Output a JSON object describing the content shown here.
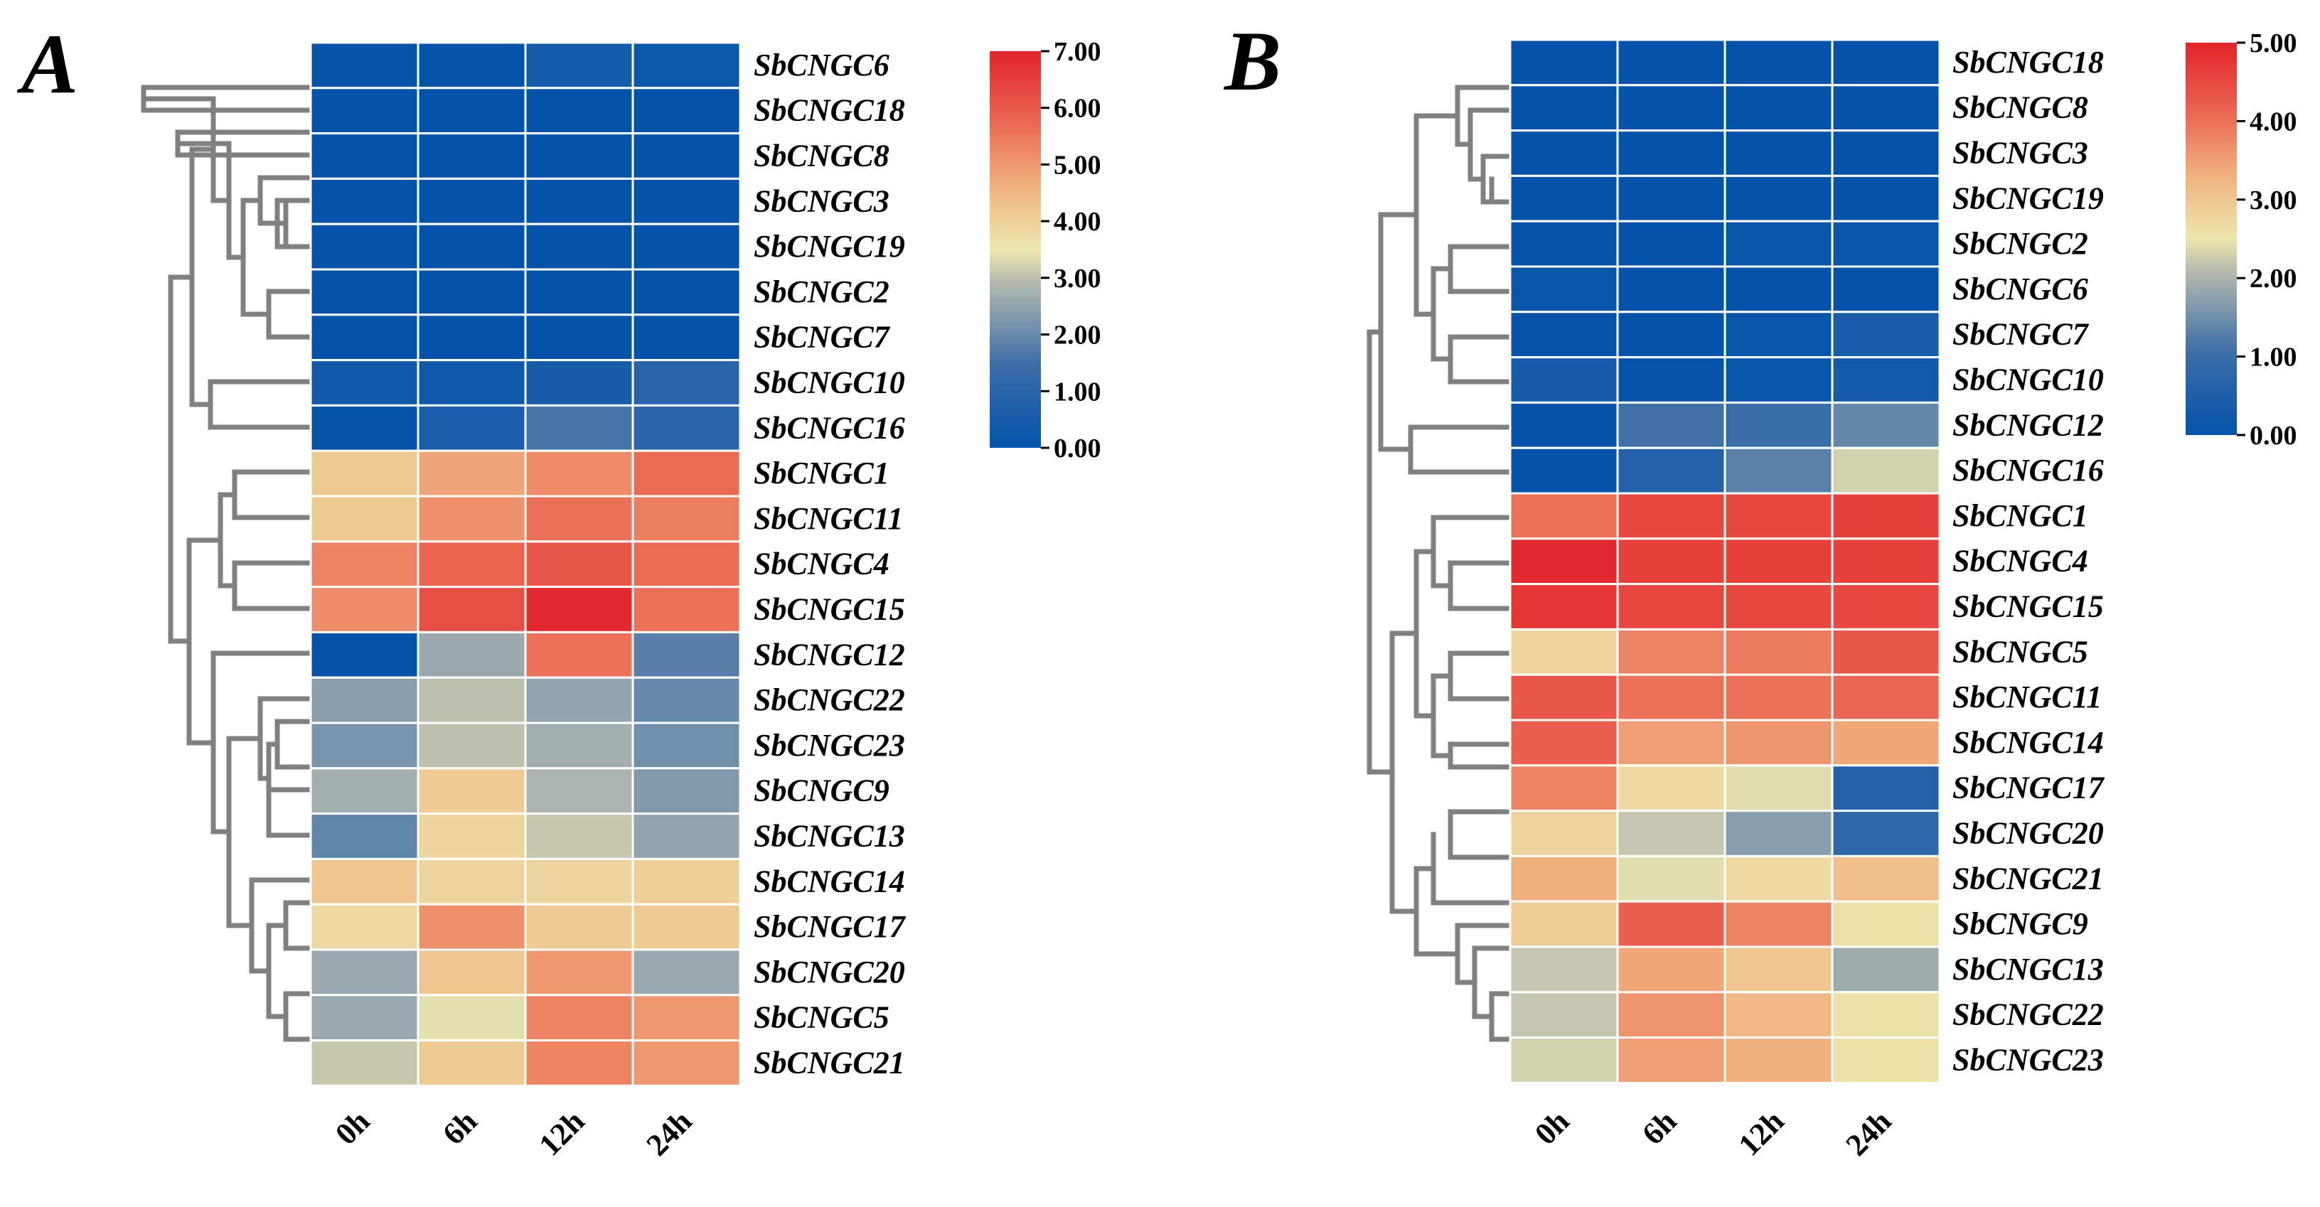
{
  "chart_data": [
    {
      "type": "heatmap",
      "panel_label": "A",
      "columns": [
        "0h",
        "6h",
        "12h",
        "24h"
      ],
      "rows": [
        {
          "gene": "SbCNGC6",
          "values": [
            0.05,
            0.05,
            0.45,
            0.2
          ]
        },
        {
          "gene": "SbCNGC18",
          "values": [
            0.0,
            0.0,
            0.0,
            0.0
          ]
        },
        {
          "gene": "SbCNGC8",
          "values": [
            0.0,
            0.0,
            0.0,
            0.0
          ]
        },
        {
          "gene": "SbCNGC3",
          "values": [
            0.0,
            0.0,
            0.0,
            0.0
          ]
        },
        {
          "gene": "SbCNGC19",
          "values": [
            0.0,
            0.0,
            0.0,
            0.0
          ]
        },
        {
          "gene": "SbCNGC2",
          "values": [
            0.0,
            0.0,
            0.0,
            0.0
          ]
        },
        {
          "gene": "SbCNGC7",
          "values": [
            0.0,
            0.0,
            0.0,
            0.0
          ]
        },
        {
          "gene": "SbCNGC10",
          "values": [
            0.4,
            0.3,
            0.5,
            1.0
          ]
        },
        {
          "gene": "SbCNGC16",
          "values": [
            0.05,
            0.6,
            1.6,
            1.0
          ]
        },
        {
          "gene": "SbCNGC1",
          "values": [
            4.1,
            4.8,
            5.2,
            5.7
          ]
        },
        {
          "gene": "SbCNGC11",
          "values": [
            4.1,
            5.1,
            5.6,
            5.4
          ]
        },
        {
          "gene": "SbCNGC4",
          "values": [
            5.3,
            5.8,
            6.0,
            5.7
          ]
        },
        {
          "gene": "SbCNGC15",
          "values": [
            5.2,
            6.2,
            6.9,
            5.6
          ]
        },
        {
          "gene": "SbCNGC12",
          "values": [
            0.0,
            2.6,
            5.6,
            1.8
          ]
        },
        {
          "gene": "SbCNGC22",
          "values": [
            2.4,
            3.0,
            2.5,
            2.0
          ]
        },
        {
          "gene": "SbCNGC23",
          "values": [
            2.2,
            3.0,
            2.7,
            2.1
          ]
        },
        {
          "gene": "SbCNGC9",
          "values": [
            2.7,
            4.1,
            2.8,
            2.3
          ]
        },
        {
          "gene": "SbCNGC13",
          "values": [
            1.9,
            3.9,
            3.1,
            2.5
          ]
        },
        {
          "gene": "SbCNGC14",
          "values": [
            4.2,
            3.9,
            3.9,
            4.0
          ]
        },
        {
          "gene": "SbCNGC17",
          "values": [
            3.8,
            5.1,
            4.1,
            4.1
          ]
        },
        {
          "gene": "SbCNGC20",
          "values": [
            2.6,
            4.2,
            5.0,
            2.6
          ]
        },
        {
          "gene": "SbCNGC5",
          "values": [
            2.6,
            3.4,
            5.3,
            5.0
          ]
        },
        {
          "gene": "SbCNGC21",
          "values": [
            3.1,
            4.1,
            5.3,
            5.0
          ]
        }
      ],
      "colorbar": {
        "min": 0.0,
        "max": 7.0,
        "ticks": [
          "0.00",
          "1.00",
          "2.00",
          "3.00",
          "4.00",
          "5.00",
          "6.00",
          "7.00"
        ]
      }
    },
    {
      "type": "heatmap",
      "panel_label": "B",
      "columns": [
        "0h",
        "6h",
        "12h",
        "24h"
      ],
      "rows": [
        {
          "gene": "SbCNGC18",
          "values": [
            0.0,
            0.0,
            0.0,
            0.0
          ]
        },
        {
          "gene": "SbCNGC8",
          "values": [
            0.0,
            0.0,
            0.0,
            0.0
          ]
        },
        {
          "gene": "SbCNGC3",
          "values": [
            0.0,
            0.0,
            0.0,
            0.0
          ]
        },
        {
          "gene": "SbCNGC19",
          "values": [
            0.0,
            0.0,
            0.0,
            0.0
          ]
        },
        {
          "gene": "SbCNGC2",
          "values": [
            0.05,
            0.0,
            0.1,
            0.1
          ]
        },
        {
          "gene": "SbCNGC6",
          "values": [
            0.1,
            0.0,
            0.0,
            0.0
          ]
        },
        {
          "gene": "SbCNGC7",
          "values": [
            0.05,
            0.0,
            0.1,
            0.4
          ]
        },
        {
          "gene": "SbCNGC10",
          "values": [
            0.35,
            0.05,
            0.1,
            0.3
          ]
        },
        {
          "gene": "SbCNGC12",
          "values": [
            0.0,
            1.1,
            1.0,
            1.4
          ]
        },
        {
          "gene": "SbCNGC16",
          "values": [
            0.0,
            0.6,
            1.3,
            2.3
          ]
        },
        {
          "gene": "SbCNGC1",
          "values": [
            4.0,
            4.5,
            4.5,
            4.6
          ]
        },
        {
          "gene": "SbCNGC4",
          "values": [
            4.95,
            4.6,
            4.6,
            4.6
          ]
        },
        {
          "gene": "SbCNGC15",
          "values": [
            4.75,
            4.5,
            4.5,
            4.5
          ]
        },
        {
          "gene": "SbCNGC5",
          "values": [
            2.8,
            3.8,
            3.9,
            4.3
          ]
        },
        {
          "gene": "SbCNGC11",
          "values": [
            4.3,
            4.0,
            4.0,
            4.1
          ]
        },
        {
          "gene": "SbCNGC14",
          "values": [
            4.2,
            3.5,
            3.6,
            3.4
          ]
        },
        {
          "gene": "SbCNGC17",
          "values": [
            3.8,
            2.7,
            2.4,
            0.6
          ]
        },
        {
          "gene": "SbCNGC20",
          "values": [
            2.8,
            2.2,
            1.7,
            0.8
          ]
        },
        {
          "gene": "SbCNGC21",
          "values": [
            3.3,
            2.4,
            2.7,
            3.1
          ]
        },
        {
          "gene": "SbCNGC9",
          "values": [
            2.9,
            4.2,
            3.8,
            2.6
          ]
        },
        {
          "gene": "SbCNGC13",
          "values": [
            2.2,
            3.4,
            3.0,
            1.9
          ]
        },
        {
          "gene": "SbCNGC22",
          "values": [
            2.2,
            3.6,
            3.2,
            2.6
          ]
        },
        {
          "gene": "SbCNGC23",
          "values": [
            2.3,
            3.5,
            3.3,
            2.6
          ]
        }
      ],
      "colorbar": {
        "min": 0.0,
        "max": 5.0,
        "ticks": [
          "0.00",
          "1.00",
          "2.00",
          "3.00",
          "4.00",
          "5.00"
        ]
      }
    }
  ],
  "colors": {
    "low": "#0353aa",
    "mid": "#ede8ad",
    "high": "#e2242a",
    "dendrogram": "#808080"
  }
}
